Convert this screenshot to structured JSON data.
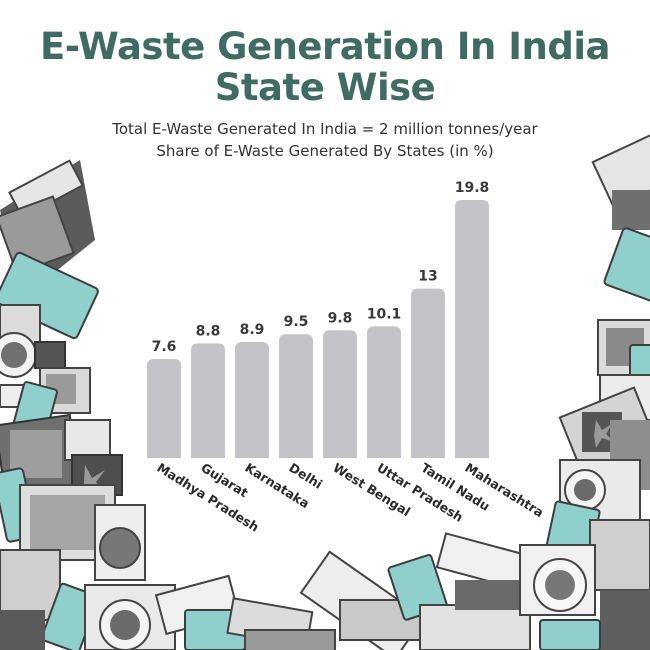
{
  "title_line1": "E-Waste Generation In India",
  "title_line2": "State Wise",
  "subtitle_line1": "Total E-Waste Generated In India = 2 million tonnes/year",
  "subtitle_line2": "Share of E-Waste Generated By States (in %)",
  "colors": {
    "title": "#3f6b63",
    "bar": "#c4c4c8",
    "appliance_teal": "#8fcfcc",
    "appliance_grey": "#6b6b6b"
  },
  "chart_data": {
    "type": "bar",
    "title": "E-Waste Generation In India State Wise",
    "subtitle": "Share of E-Waste Generated By States (in %)",
    "categories": [
      "Madhya Pradesh",
      "Gujarat",
      "Karnataka",
      "Delhi",
      "West Bengal",
      "Uttar Pradesh",
      "Tamil Nadu",
      "Maharashtra"
    ],
    "values": [
      7.6,
      8.8,
      8.9,
      9.5,
      9.8,
      10.1,
      13,
      19.8
    ],
    "value_labels": [
      "7.6",
      "8.8",
      "8.9",
      "9.5",
      "9.8",
      "10.1",
      "13",
      "19.8"
    ],
    "xlabel": "",
    "ylabel": "",
    "ylim": [
      0,
      19.8
    ],
    "grid": false,
    "legend": "none"
  }
}
